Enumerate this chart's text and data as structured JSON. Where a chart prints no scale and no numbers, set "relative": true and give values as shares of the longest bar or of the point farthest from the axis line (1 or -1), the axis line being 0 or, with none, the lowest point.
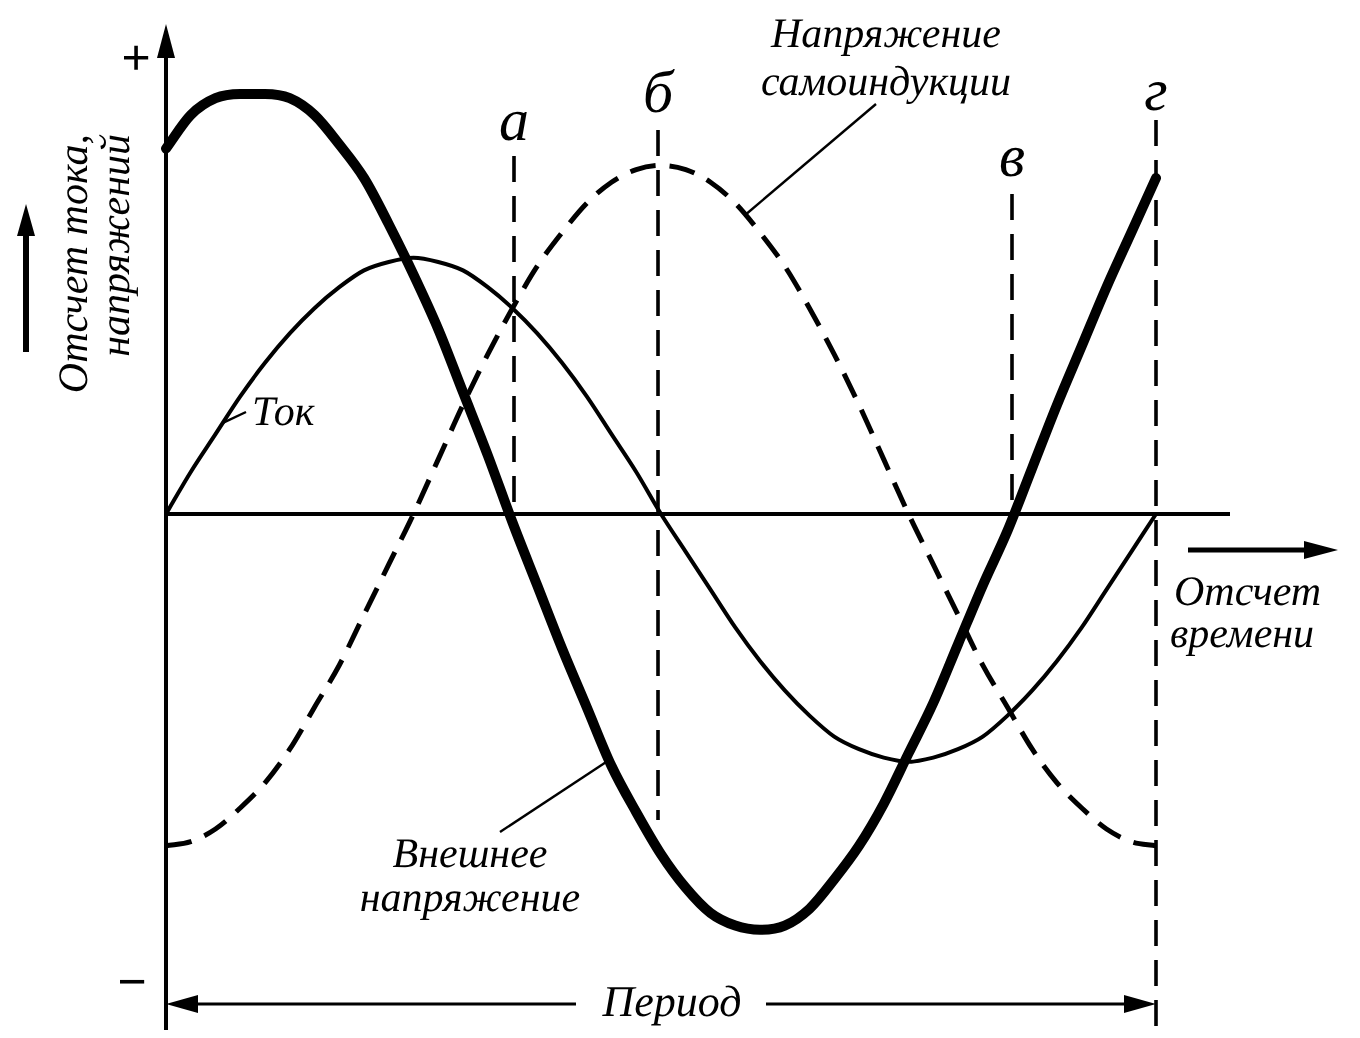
{
  "chart_data": {
    "type": "line",
    "relative": true,
    "ylabel": "Отсчет тока, напряжений",
    "xlabel": "Отсчет времени",
    "annotations": [
      "+",
      "−",
      "Период",
      "а",
      "б",
      "в",
      "г"
    ],
    "categories": [
      null,
      null,
      null,
      null,
      null,
      null,
      null,
      null,
      null,
      null,
      null,
      null,
      null,
      null,
      null,
      null,
      null,
      null,
      null,
      null,
      null,
      null,
      null,
      null,
      null,
      null,
      null,
      null,
      null,
      null,
      null,
      null,
      null,
      null,
      null,
      null,
      null,
      null,
      null,
      null,
      null
    ],
    "series": [
      {
        "name": "Ток",
        "color": "#000000",
        "values": [
          0,
          0.1,
          0.19,
          0.28,
          0.36,
          0.43,
          0.49,
          0.54,
          0.58,
          0.6,
          0.61,
          0.6,
          0.58,
          0.54,
          0.49,
          0.43,
          0.36,
          0.28,
          0.19,
          0.1,
          0,
          -0.09,
          -0.18,
          -0.27,
          -0.35,
          -0.42,
          -0.48,
          -0.53,
          -0.56,
          -0.58,
          -0.59,
          -0.58,
          -0.56,
          -0.53,
          -0.48,
          -0.42,
          -0.35,
          -0.27,
          -0.18,
          -0.09,
          0
        ]
      },
      {
        "name": "Напряжение самоиндукции",
        "color": "#000000",
        "line_style": "dashed",
        "values": [
          -0.79,
          -0.78,
          -0.75,
          -0.7,
          -0.64,
          -0.56,
          -0.46,
          -0.36,
          -0.24,
          -0.12,
          0,
          0.13,
          0.26,
          0.38,
          0.49,
          0.59,
          0.67,
          0.74,
          0.79,
          0.82,
          0.83,
          0.82,
          0.79,
          0.74,
          0.67,
          0.59,
          0.49,
          0.38,
          0.26,
          0.13,
          0,
          -0.12,
          -0.24,
          -0.36,
          -0.46,
          -0.56,
          -0.64,
          -0.7,
          -0.75,
          -0.78,
          -0.79
        ]
      },
      {
        "name": "Внешнее напряжение",
        "color": "#000000",
        "values": [
          0.87,
          0.95,
          0.99,
          1.0,
          1.0,
          0.99,
          0.95,
          0.88,
          0.8,
          0.69,
          0.57,
          0.44,
          0.29,
          0.14,
          -0.02,
          -0.17,
          -0.32,
          -0.46,
          -0.6,
          -0.71,
          -0.81,
          -0.89,
          -0.95,
          -0.98,
          -0.99,
          -0.98,
          -0.94,
          -0.87,
          -0.79,
          -0.69,
          -0.57,
          -0.45,
          -0.31,
          -0.17,
          -0.04,
          0.11,
          0.26,
          0.4,
          0.54,
          0.67,
          0.8
        ]
      }
    ]
  }
}
